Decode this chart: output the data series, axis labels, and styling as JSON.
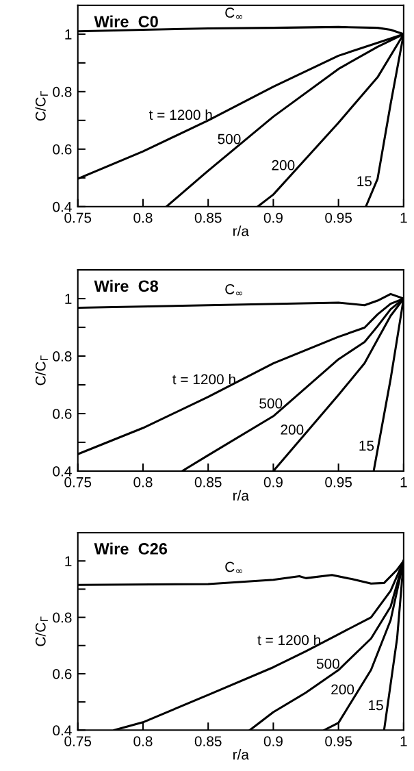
{
  "chart_data": [
    {
      "type": "line",
      "title": "Wire  C0",
      "xlabel": "r/a",
      "ylabel": "C/C$_{Γ}$",
      "xlim": [
        0.75,
        1
      ],
      "ylim": [
        0.4,
        1.1
      ],
      "xticks": [
        0.75,
        0.8,
        0.85,
        0.9,
        0.95,
        1
      ],
      "yticks": [
        0.4,
        {
          "value": 0.5,
          "label": null
        },
        0.6,
        {
          "value": 0.7,
          "label": null
        },
        0.8,
        {
          "value": 0.9,
          "label": null
        },
        1
      ],
      "grid": false,
      "legend": false,
      "marker": "none",
      "line_style": "solid",
      "series": [
        {
          "name": "C$_{∞}$",
          "color": "#000000",
          "x": [
            0.75,
            0.8,
            0.85,
            0.9,
            0.95,
            0.98,
            0.99,
            1
          ],
          "values": [
            1.01,
            1.015,
            1.02,
            1.022,
            1.025,
            1.022,
            1.015,
            1.0
          ]
        },
        {
          "name": "t = 1200 h",
          "color": "#000000",
          "x": [
            0.75,
            0.8,
            0.85,
            0.9,
            0.95,
            0.98,
            1
          ],
          "values": [
            0.497,
            0.592,
            0.7,
            0.817,
            0.925,
            0.97,
            1.0
          ]
        },
        {
          "name": "500",
          "color": "#000000",
          "x": [
            0.818,
            0.85,
            0.9,
            0.95,
            0.98,
            1
          ],
          "values": [
            0.4,
            0.525,
            0.713,
            0.879,
            0.956,
            1.0
          ]
        },
        {
          "name": "200",
          "color": "#000000",
          "x": [
            0.888,
            0.9,
            0.95,
            0.98,
            1
          ],
          "values": [
            0.4,
            0.442,
            0.692,
            0.85,
            1.0
          ]
        },
        {
          "name": "15",
          "color": "#000000",
          "x": [
            0.971,
            0.98,
            0.99,
            1
          ],
          "values": [
            0.4,
            0.497,
            0.757,
            1.0
          ]
        }
      ]
    },
    {
      "type": "line",
      "title": "Wire  C8",
      "xlabel": "r/a",
      "ylabel": "C/C$_{Γ}$",
      "xlim": [
        0.75,
        1
      ],
      "ylim": [
        0.4,
        1.1
      ],
      "xticks": [
        0.75,
        0.8,
        0.85,
        0.9,
        0.95,
        1
      ],
      "yticks": [
        0.4,
        {
          "value": 0.5,
          "label": null
        },
        0.6,
        {
          "value": 0.7,
          "label": null
        },
        0.8,
        {
          "value": 0.9,
          "label": null
        },
        1
      ],
      "grid": false,
      "legend": false,
      "marker": "none",
      "line_style": "solid",
      "series": [
        {
          "name": "C$_{∞}$",
          "color": "#000000",
          "x": [
            0.75,
            0.85,
            0.95,
            0.97,
            0.98,
            0.99,
            1
          ],
          "values": [
            0.968,
            0.977,
            0.986,
            0.977,
            0.993,
            1.016,
            1.0
          ]
        },
        {
          "name": "t = 1200 h",
          "color": "#000000",
          "x": [
            0.75,
            0.8,
            0.85,
            0.9,
            0.95,
            0.97,
            0.98,
            0.99,
            1
          ],
          "values": [
            0.459,
            0.55,
            0.658,
            0.775,
            0.867,
            0.899,
            0.945,
            0.982,
            1.0
          ]
        },
        {
          "name": "500",
          "color": "#000000",
          "x": [
            0.83,
            0.85,
            0.9,
            0.95,
            0.97,
            0.98,
            0.99,
            1
          ],
          "values": [
            0.4,
            0.455,
            0.591,
            0.789,
            0.849,
            0.904,
            0.963,
            1.0
          ]
        },
        {
          "name": "200",
          "color": "#000000",
          "x": [
            0.9,
            0.95,
            0.97,
            0.98,
            0.99,
            1
          ],
          "values": [
            0.4,
            0.665,
            0.775,
            0.858,
            0.94,
            1.0
          ]
        },
        {
          "name": "15",
          "color": "#000000",
          "x": [
            0.977,
            0.99,
            1
          ],
          "values": [
            0.4,
            0.72,
            1.0
          ]
        }
      ]
    },
    {
      "type": "line",
      "title": "Wire  C26",
      "xlabel": "r/a",
      "ylabel": "C/C$_{Γ}$",
      "xlim": [
        0.75,
        1
      ],
      "ylim": [
        0.4,
        1.1
      ],
      "xticks": [
        0.75,
        0.8,
        0.85,
        0.9,
        0.95,
        1
      ],
      "yticks": [
        0.4,
        {
          "value": 0.5,
          "label": null
        },
        0.6,
        {
          "value": 0.7,
          "label": null
        },
        0.8,
        {
          "value": 0.9,
          "label": null
        },
        1
      ],
      "grid": false,
      "legend": false,
      "marker": "none",
      "line_style": "solid",
      "series": [
        {
          "name": "C$_{∞}$",
          "color": "#000000",
          "x": [
            0.75,
            0.85,
            0.9,
            0.92,
            0.925,
            0.945,
            0.96,
            0.975,
            0.985,
            0.995,
            1
          ],
          "values": [
            0.915,
            0.918,
            0.933,
            0.946,
            0.939,
            0.95,
            0.936,
            0.92,
            0.922,
            0.969,
            1.0
          ]
        },
        {
          "name": "t = 1200 h",
          "color": "#000000",
          "x": [
            0.778,
            0.8,
            0.85,
            0.9,
            0.925,
            0.95,
            0.975,
            0.99,
            1
          ],
          "values": [
            0.4,
            0.428,
            0.525,
            0.623,
            0.68,
            0.74,
            0.8,
            0.894,
            1.0
          ]
        },
        {
          "name": "500",
          "color": "#000000",
          "x": [
            0.882,
            0.9,
            0.925,
            0.95,
            0.975,
            0.99,
            1
          ],
          "values": [
            0.4,
            0.464,
            0.533,
            0.613,
            0.725,
            0.838,
            1.0
          ]
        },
        {
          "name": "200",
          "color": "#000000",
          "x": [
            0.939,
            0.95,
            0.975,
            0.99,
            1
          ],
          "values": [
            0.4,
            0.426,
            0.614,
            0.79,
            1.0
          ]
        },
        {
          "name": "15",
          "color": "#000000",
          "x": [
            0.985,
            0.995,
            1
          ],
          "values": [
            0.4,
            0.726,
            1.0
          ]
        }
      ]
    }
  ]
}
